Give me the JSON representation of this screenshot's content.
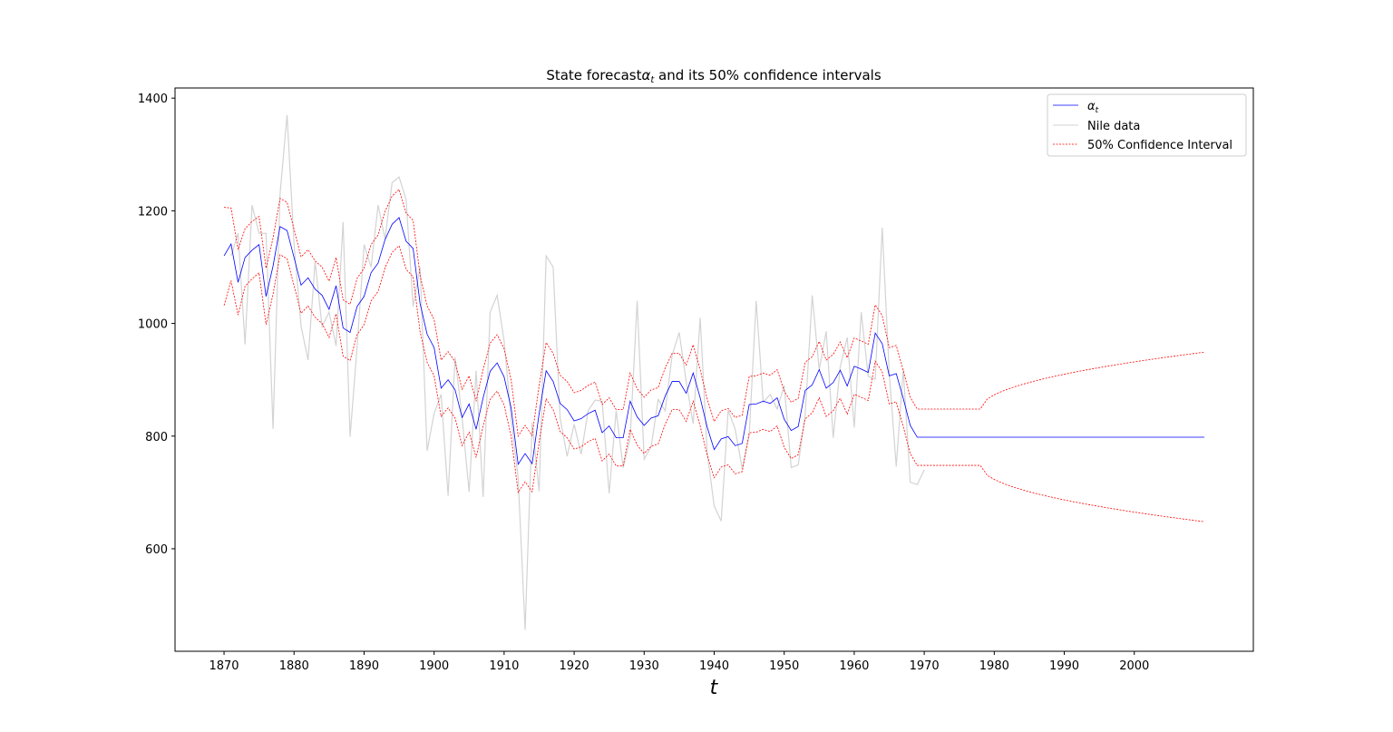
{
  "chart_data": {
    "type": "line",
    "title": {
      "prefix": "State forecast",
      "symbol": "α",
      "subscript": "t",
      "suffix": " and its 50% confidence intervals"
    },
    "xlabel": "t",
    "ylabel": "",
    "xlim": [
      1863,
      2017
    ],
    "ylim": [
      418,
      1418
    ],
    "xticks": [
      1870,
      1880,
      1890,
      1900,
      1910,
      1920,
      1930,
      1940,
      1950,
      1960,
      1970,
      1980,
      1990,
      2000
    ],
    "yticks": [
      600,
      800,
      1000,
      1200,
      1400
    ],
    "grid": false,
    "legend_position": "top-right",
    "legend": [
      {
        "symbol": "α",
        "subscript": "t",
        "label": ""
      },
      {
        "label": "Nile data"
      },
      {
        "label": "50% Confidence Interval"
      }
    ],
    "colors": {
      "alpha": "#0000ff",
      "nile": "#d3d3d3",
      "ci": "#ff0000"
    },
    "series": [
      {
        "key": "nile",
        "x_start": 1871,
        "values": [
          1120,
          1160,
          963,
          1210,
          1160,
          1160,
          813,
          1230,
          1370,
          1140,
          995,
          935,
          1110,
          994,
          1020,
          960,
          1180,
          799,
          958,
          1140,
          1100,
          1210,
          1150,
          1250,
          1260,
          1220,
          1030,
          1100,
          774,
          840,
          874,
          694,
          940,
          833,
          701,
          916,
          692,
          1020,
          1050,
          969,
          831,
          726,
          456,
          824,
          702,
          1120,
          1100,
          832,
          764,
          821,
          768,
          845,
          864,
          862,
          698,
          845,
          744,
          796,
          1040,
          759,
          781,
          865,
          845,
          944,
          984,
          897,
          822,
          1010,
          771,
          676,
          649,
          846,
          812,
          742,
          801,
          1040,
          860,
          874,
          848,
          890,
          744,
          749,
          838,
          1050,
          918,
          986,
          797,
          923,
          975,
          815,
          1020,
          906,
          901,
          1170,
          912,
          746,
          919,
          718,
          714,
          740
        ]
      },
      {
        "key": "alpha",
        "x_start": 1870,
        "values": [
          1120,
          1141,
          1073,
          1117,
          1130,
          1140,
          1048,
          1102,
          1172,
          1165,
          1117,
          1068,
          1081,
          1061,
          1050,
          1025,
          1067,
          992,
          984,
          1030,
          1048,
          1090,
          1107,
          1149,
          1176,
          1188,
          1146,
          1133,
          1035,
          981,
          957,
          885,
          900,
          882,
          833,
          857,
          812,
          868,
          915,
          930,
          905,
          850,
          750,
          769,
          751,
          840,
          916,
          897,
          858,
          847,
          827,
          831,
          840,
          846,
          806,
          818,
          797,
          797,
          862,
          834,
          819,
          832,
          836,
          871,
          897,
          897,
          876,
          912,
          868,
          816,
          776,
          795,
          799,
          783,
          787,
          856,
          857,
          862,
          858,
          868,
          830,
          810,
          817,
          881,
          891,
          918,
          885,
          895,
          917,
          889,
          924,
          919,
          913,
          983,
          964,
          907,
          911,
          867,
          819,
          798
        ]
      },
      {
        "key": "ci_upper",
        "x_start": 1870,
        "values": [
          1206,
          1205,
          1131,
          1168,
          1181,
          1190,
          1098,
          1152,
          1222,
          1215,
          1167,
          1118,
          1131,
          1111,
          1100,
          1075,
          1117,
          1042,
          1034,
          1080,
          1098,
          1140,
          1157,
          1199,
          1226,
          1238,
          1196,
          1183,
          1085,
          1031,
          1007,
          935,
          950,
          932,
          883,
          907,
          862,
          918,
          965,
          980,
          955,
          900,
          800,
          819,
          801,
          890,
          966,
          947,
          908,
          897,
          877,
          881,
          890,
          896,
          856,
          868,
          847,
          847,
          912,
          884,
          869,
          882,
          886,
          921,
          947,
          947,
          926,
          962,
          918,
          866,
          826,
          845,
          849,
          833,
          837,
          906,
          907,
          912,
          908,
          918,
          880,
          860,
          867,
          931,
          941,
          968,
          935,
          945,
          967,
          939,
          974,
          969,
          963,
          1033,
          1014,
          957,
          961,
          917,
          869,
          848
        ]
      },
      {
        "key": "ci_lower",
        "x_start": 1870,
        "values": [
          1032,
          1076,
          1015,
          1066,
          1079,
          1090,
          998,
          1052,
          1122,
          1115,
          1067,
          1018,
          1031,
          1011,
          1000,
          975,
          1017,
          942,
          934,
          980,
          998,
          1040,
          1057,
          1099,
          1126,
          1138,
          1096,
          1083,
          985,
          931,
          907,
          835,
          850,
          832,
          783,
          807,
          762,
          818,
          865,
          880,
          855,
          800,
          700,
          719,
          701,
          790,
          866,
          847,
          808,
          797,
          777,
          781,
          790,
          796,
          756,
          768,
          747,
          747,
          812,
          784,
          769,
          782,
          786,
          821,
          847,
          847,
          826,
          862,
          818,
          766,
          726,
          745,
          749,
          733,
          737,
          806,
          807,
          812,
          808,
          818,
          780,
          760,
          767,
          831,
          841,
          868,
          835,
          845,
          867,
          839,
          874,
          869,
          863,
          933,
          914,
          857,
          861,
          817,
          769,
          748
        ]
      }
    ],
    "forecast": {
      "x_start": 1978,
      "x_end": 2010,
      "level": 798,
      "upper_end": 949,
      "lower_end": 648
    }
  }
}
